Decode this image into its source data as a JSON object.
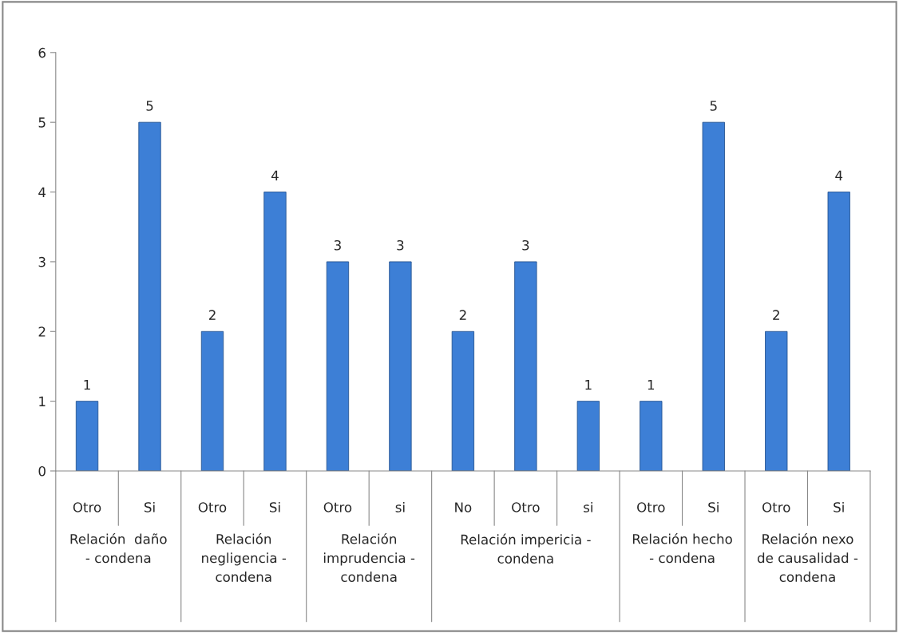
{
  "chart_data": {
    "type": "bar",
    "categories": [
      "Otro",
      "Si",
      "Otro",
      "Si",
      "Otro",
      "si",
      "No",
      "Otro",
      "si",
      "Otro",
      "Si",
      "Otro",
      "Si"
    ],
    "values": [
      1,
      5,
      2,
      4,
      3,
      3,
      2,
      3,
      1,
      1,
      5,
      2,
      4
    ],
    "color": "#3d7fd6",
    "ylim": [
      0,
      6
    ],
    "yticks": [
      0,
      1,
      2,
      3,
      4,
      5,
      6
    ],
    "grid": false,
    "legend": false,
    "data_labels": true,
    "annotations": [
      "Relación  daño\n- condena",
      "Relación\nnegligencia -\ncondena",
      "Relación\nimprudencia -\ncondena",
      "Relación impericia -\ncondena",
      "Relación hecho\n- condena",
      "Relación nexo\nde causalidad -\ncondena"
    ]
  }
}
